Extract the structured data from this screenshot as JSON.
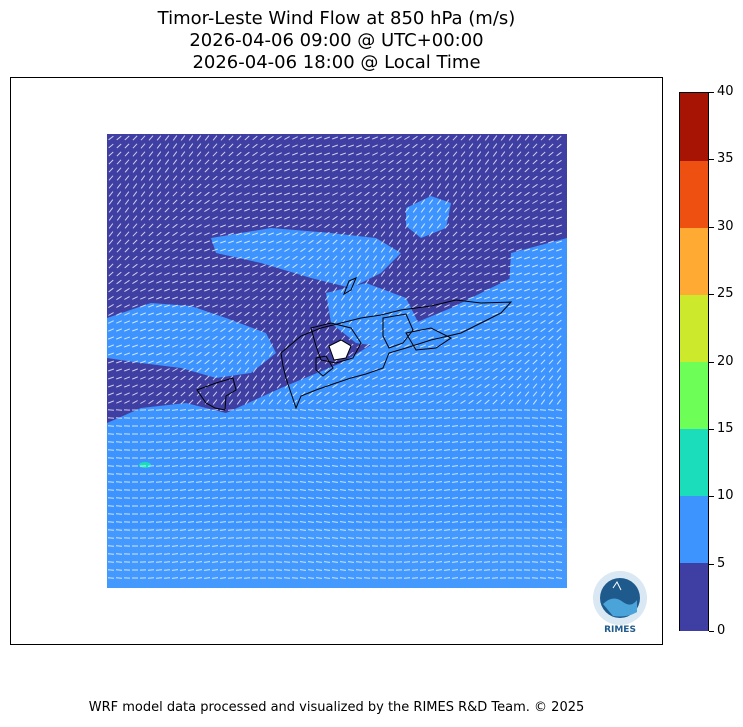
{
  "title": {
    "line1": "Timor-Leste Wind Flow at 850 hPa (m/s)",
    "line2": "2026-04-06 09:00 @ UTC+00:00",
    "line3": "2026-04-06 18:00 @ Local Time"
  },
  "colorbar": {
    "levels": [
      {
        "from": 0,
        "to": 5,
        "color": "#3f3ea3"
      },
      {
        "from": 5,
        "to": 10,
        "color": "#3d94ff"
      },
      {
        "from": 10,
        "to": 15,
        "color": "#1bdcbb"
      },
      {
        "from": 15,
        "to": 20,
        "color": "#6dff58"
      },
      {
        "from": 20,
        "to": 25,
        "color": "#cde92b"
      },
      {
        "from": 25,
        "to": 30,
        "color": "#ffaa33"
      },
      {
        "from": 30,
        "to": 35,
        "color": "#ee5011"
      },
      {
        "from": 35,
        "to": 40,
        "color": "#a81403"
      }
    ],
    "tick_labels": [
      "0",
      "5",
      "10",
      "15",
      "20",
      "25",
      "30",
      "35",
      "40"
    ]
  },
  "logo": {
    "text": "RIMES"
  },
  "footer": {
    "credit": "WRF model data processed and visualized by the RIMES R&D Team. © 2025"
  }
}
